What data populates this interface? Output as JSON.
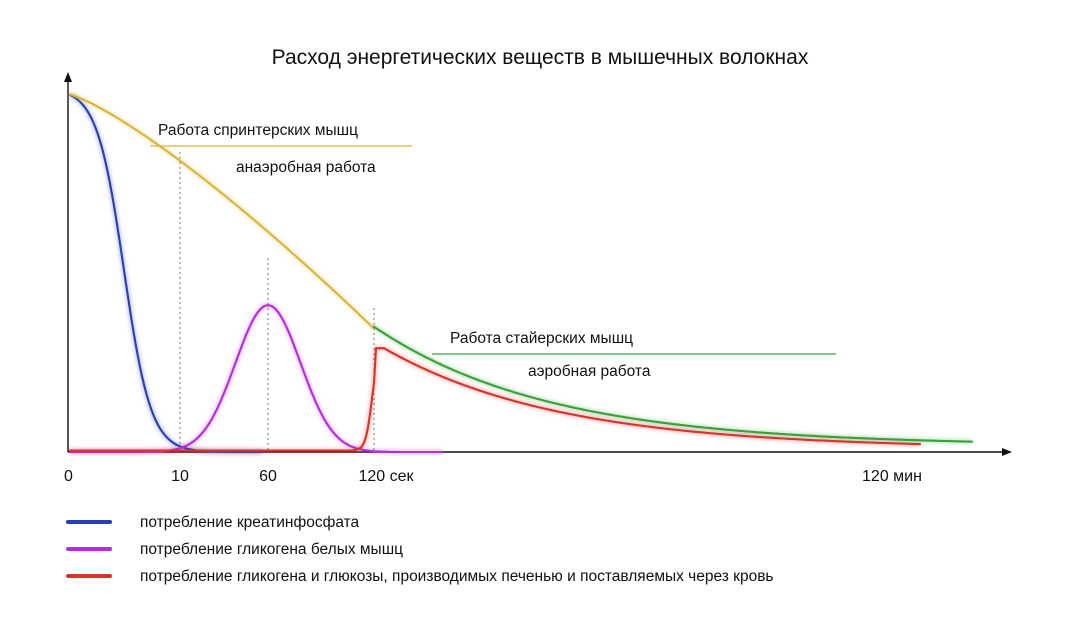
{
  "chart_data": {
    "type": "line",
    "title": "Расход энергетических веществ в мышечных волокнах",
    "xlabel": "",
    "ylabel": "",
    "x_ticks": [
      "0",
      "10",
      "60",
      "120 сек",
      "120 мин"
    ],
    "y_ticks": [],
    "grid": false,
    "legend_position": "bottom-left",
    "reference_lines": [
      "10",
      "60",
      "120 сек"
    ],
    "series": [
      {
        "name": "потребление креатинфосфата",
        "color": "#2a3fb0",
        "x": [
          "0",
          "10",
          "60",
          "120 сек",
          "120 мин"
        ],
        "values": [
          1.0,
          0.1,
          0.0,
          0.0,
          null
        ]
      },
      {
        "name": "потребление гликогена белых мышц",
        "color": "#b130d8",
        "x": [
          "0",
          "10",
          "60",
          "120 сек",
          "120 мин"
        ],
        "values": [
          0.0,
          0.08,
          0.41,
          0.02,
          null
        ]
      },
      {
        "name": "потребление гликогена и глюкозы, производимых печенью и поставляемых через кровь",
        "color": "#d9342b",
        "x": [
          "0",
          "10",
          "60",
          "120 сек",
          "120 мин"
        ],
        "values": [
          0.0,
          0.0,
          0.0,
          0.1,
          0.01
        ]
      },
      {
        "name": "",
        "color": "#d8b63a",
        "x": [
          "0",
          "10",
          "60",
          "120 сек"
        ],
        "values": [
          1.0,
          0.8,
          0.55,
          0.35
        ]
      },
      {
        "name": "",
        "color": "#3aa03a",
        "x": [
          "120 сек",
          "120 мин"
        ],
        "values": [
          0.35,
          0.02
        ]
      }
    ],
    "annotations": [
      {
        "text": "Работа спринтерских мышц",
        "color": "#d8b63a"
      },
      {
        "text": "анаэробная работа",
        "color": "#d8b63a"
      },
      {
        "text": "Работа стайерских мышц",
        "color": "#3aa03a"
      },
      {
        "text": "аэробная работа",
        "color": "#3aa03a"
      }
    ]
  }
}
